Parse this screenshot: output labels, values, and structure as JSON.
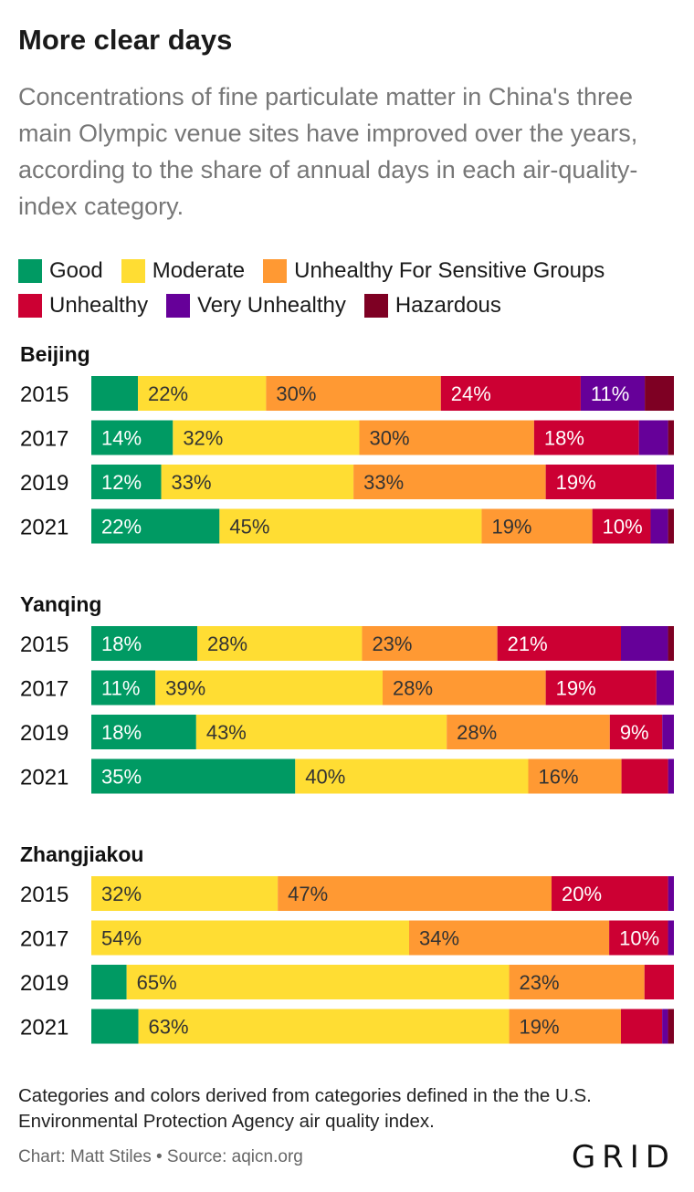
{
  "header": {
    "title": "More clear days",
    "subtitle": "Concentrations of fine particulate matter in China's three main Olympic venue sites have improved over the years, according to the share of annual days in each air-quality-index category."
  },
  "footer": {
    "note": "Categories and colors derived from categories defined in the the U.S. Environmental Protection Agency air quality index.",
    "credit": "Chart: Matt Stiles • Source: aqicn.org",
    "logo": "GRID"
  },
  "colors": {
    "Good": "#009a63",
    "Moderate": "#ffdd33",
    "Unhealthy For Sensitive Groups": "#ff9933",
    "Unhealthy": "#cc0033",
    "Very Unhealthy": "#660099",
    "Hazardous": "#7e0023"
  },
  "chart_data": {
    "type": "stacked-bar-horizontal",
    "unit": "%",
    "xlim": [
      0,
      100
    ],
    "categories": [
      "Good",
      "Moderate",
      "Unhealthy For Sensitive Groups",
      "Unhealthy",
      "Very Unhealthy",
      "Hazardous"
    ],
    "legend_rows": [
      [
        "Good",
        "Moderate",
        "Unhealthy For Sensitive Groups"
      ],
      [
        "Unhealthy",
        "Very Unhealthy",
        "Hazardous"
      ]
    ],
    "groups": [
      {
        "name": "Beijing",
        "rows": [
          {
            "year": "2015",
            "values": [
              8,
              22,
              30,
              24,
              11,
              5
            ]
          },
          {
            "year": "2017",
            "values": [
              14,
              32,
              30,
              18,
              5,
              1
            ]
          },
          {
            "year": "2019",
            "values": [
              12,
              33,
              33,
              19,
              3,
              0
            ]
          },
          {
            "year": "2021",
            "values": [
              22,
              45,
              19,
              10,
              3,
              1
            ]
          }
        ]
      },
      {
        "name": "Yanqing",
        "rows": [
          {
            "year": "2015",
            "values": [
              18,
              28,
              23,
              21,
              8,
              1
            ]
          },
          {
            "year": "2017",
            "values": [
              11,
              39,
              28,
              19,
              3,
              0
            ]
          },
          {
            "year": "2019",
            "values": [
              18,
              43,
              28,
              9,
              2,
              0
            ]
          },
          {
            "year": "2021",
            "values": [
              35,
              40,
              16,
              8,
              1,
              0
            ]
          }
        ]
      },
      {
        "name": "Zhangjiakou",
        "rows": [
          {
            "year": "2015",
            "values": [
              0,
              32,
              47,
              20,
              1,
              0
            ]
          },
          {
            "year": "2017",
            "values": [
              0,
              54,
              34,
              10,
              1,
              0
            ]
          },
          {
            "year": "2019",
            "values": [
              6,
              65,
              23,
              5,
              0,
              0
            ]
          },
          {
            "year": "2021",
            "values": [
              8,
              63,
              19,
              7,
              1,
              1
            ]
          }
        ]
      }
    ]
  }
}
